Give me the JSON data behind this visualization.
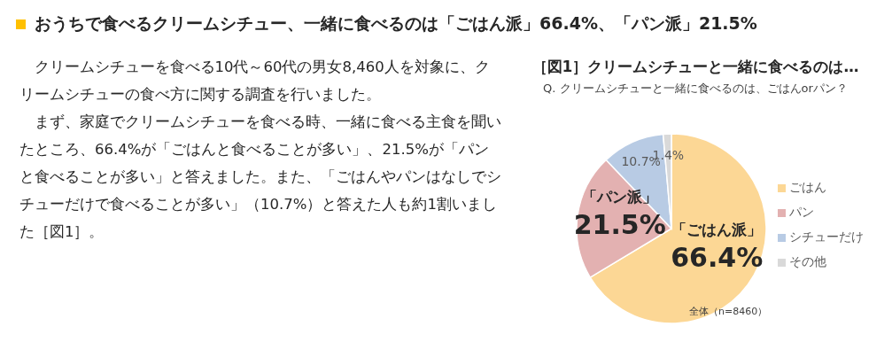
{
  "chart_data": {
    "type": "pie",
    "title": "おうちで食べるクリームシチュー、一緒に食べるのは「ごはん派」66.4%、「パン派」21.5%",
    "subtitle": "［図1］クリームシチューと一緒に食べるのは…",
    "categories": [
      "ごはん",
      "パン",
      "シチューだけ",
      "その他"
    ],
    "values": [
      66.4,
      21.5,
      10.7,
      1.4
    ],
    "colors": [
      "#fcd795",
      "#e3b1b1",
      "#b8cbe4",
      "#d9d9d9"
    ],
    "value_labels": [
      "66.4%",
      "21.5%",
      "10.7%",
      "1.4%"
    ],
    "legend": "right",
    "annotations": [
      "Q. クリームシチューと一緒に食べるのは、ごはんorパン？",
      "クリームシチューを食べる10代～60代の男女8,460人を対象に、クリームシチューの食べ方に関する調査を行いました。",
      "まず、家庭でクリームシチューを食べる時、一緒に食べる主食を聞いたところ、66.4%が「ごはんと食べることが多い」、21.5%が「パンと食べることが多い」と答えました。また、「ごはんやパンはなしでシチューだけで食べることが多い」（10.7%）と答えた人も約1割いました［図1］。",
      "全体（n=8460）",
      {
        "text": "「ごはん派」",
        "x": "ごはん"
      },
      {
        "text": "「パン派」",
        "x": "パン"
      }
    ]
  }
}
